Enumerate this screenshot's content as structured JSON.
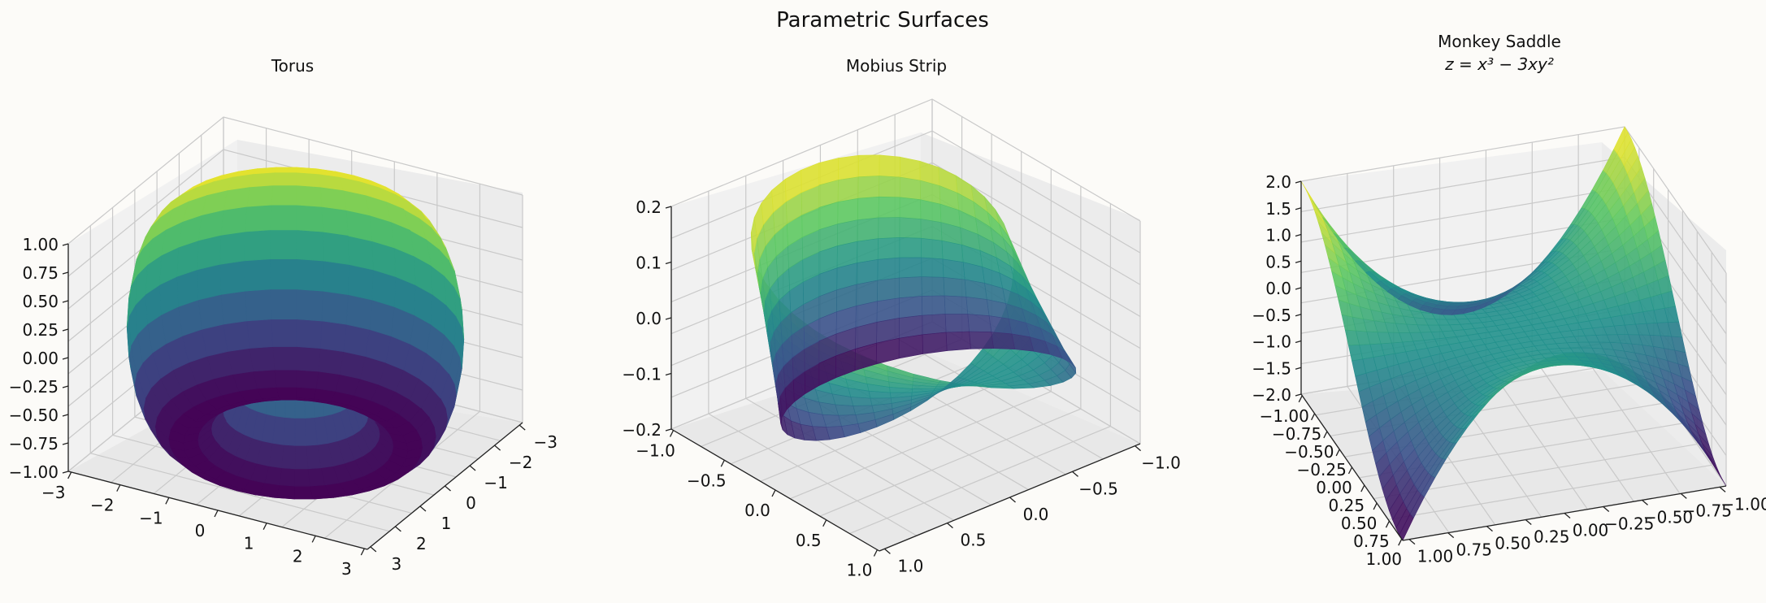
{
  "figure_title": "Parametric Surfaces",
  "colormap": [
    "#440154",
    "#3b528b",
    "#21918c",
    "#5ec962",
    "#fde725"
  ],
  "chart_data": [
    {
      "id": "torus",
      "type": "surface3d",
      "title": "Torus",
      "subtitle": "",
      "surface": "torus",
      "params": {
        "R": 2,
        "r": 1
      },
      "x_ticks": [
        "−3",
        "−2",
        "−1",
        "0",
        "1",
        "2",
        "3"
      ],
      "y_ticks": [
        "3",
        "2",
        "1",
        "0",
        "−1",
        "−2",
        "−3"
      ],
      "z_ticks": [
        "−1.00",
        "−0.75",
        "−0.50",
        "−0.25",
        "0.00",
        "0.25",
        "0.50",
        "0.75",
        "1.00"
      ],
      "xlim": [
        -3,
        3
      ],
      "ylim": [
        -3,
        3
      ],
      "zlim": [
        -1,
        1
      ]
    },
    {
      "id": "mobius",
      "type": "surface3d",
      "title": "Mobius Strip",
      "subtitle": "",
      "surface": "mobius",
      "x_ticks": [
        "−1.0",
        "−0.5",
        "0.0",
        "0.5",
        "1.0"
      ],
      "y_ticks": [
        "1.0",
        "0.5",
        "0.0",
        "−0.5",
        "−1.0"
      ],
      "z_ticks": [
        "−0.2",
        "−0.1",
        "0.0",
        "0.1",
        "0.2"
      ],
      "xlim": [
        -1.2,
        1.2
      ],
      "ylim": [
        -1.2,
        1.2
      ],
      "zlim": [
        -0.25,
        0.25
      ]
    },
    {
      "id": "saddle",
      "type": "surface3d",
      "title": "Monkey Saddle",
      "subtitle": "z = x³ − 3xy²",
      "surface": "monkey_saddle",
      "x_ticks": [
        "−1.00",
        "−0.75",
        "−0.50",
        "−0.25",
        "0.00",
        "0.25",
        "0.50",
        "0.75",
        "1.00"
      ],
      "y_ticks": [
        "1.00",
        "0.75",
        "0.50",
        "0.25",
        "0.00",
        "−0.25",
        "−0.50",
        "−0.75",
        "−1.00"
      ],
      "z_ticks": [
        "−2.0",
        "−1.5",
        "−1.0",
        "−0.5",
        "0.0",
        "0.5",
        "1.0",
        "1.5",
        "2.0"
      ],
      "xlim": [
        -1,
        1
      ],
      "ylim": [
        -1,
        1
      ],
      "zlim": [
        -2,
        2
      ]
    }
  ]
}
